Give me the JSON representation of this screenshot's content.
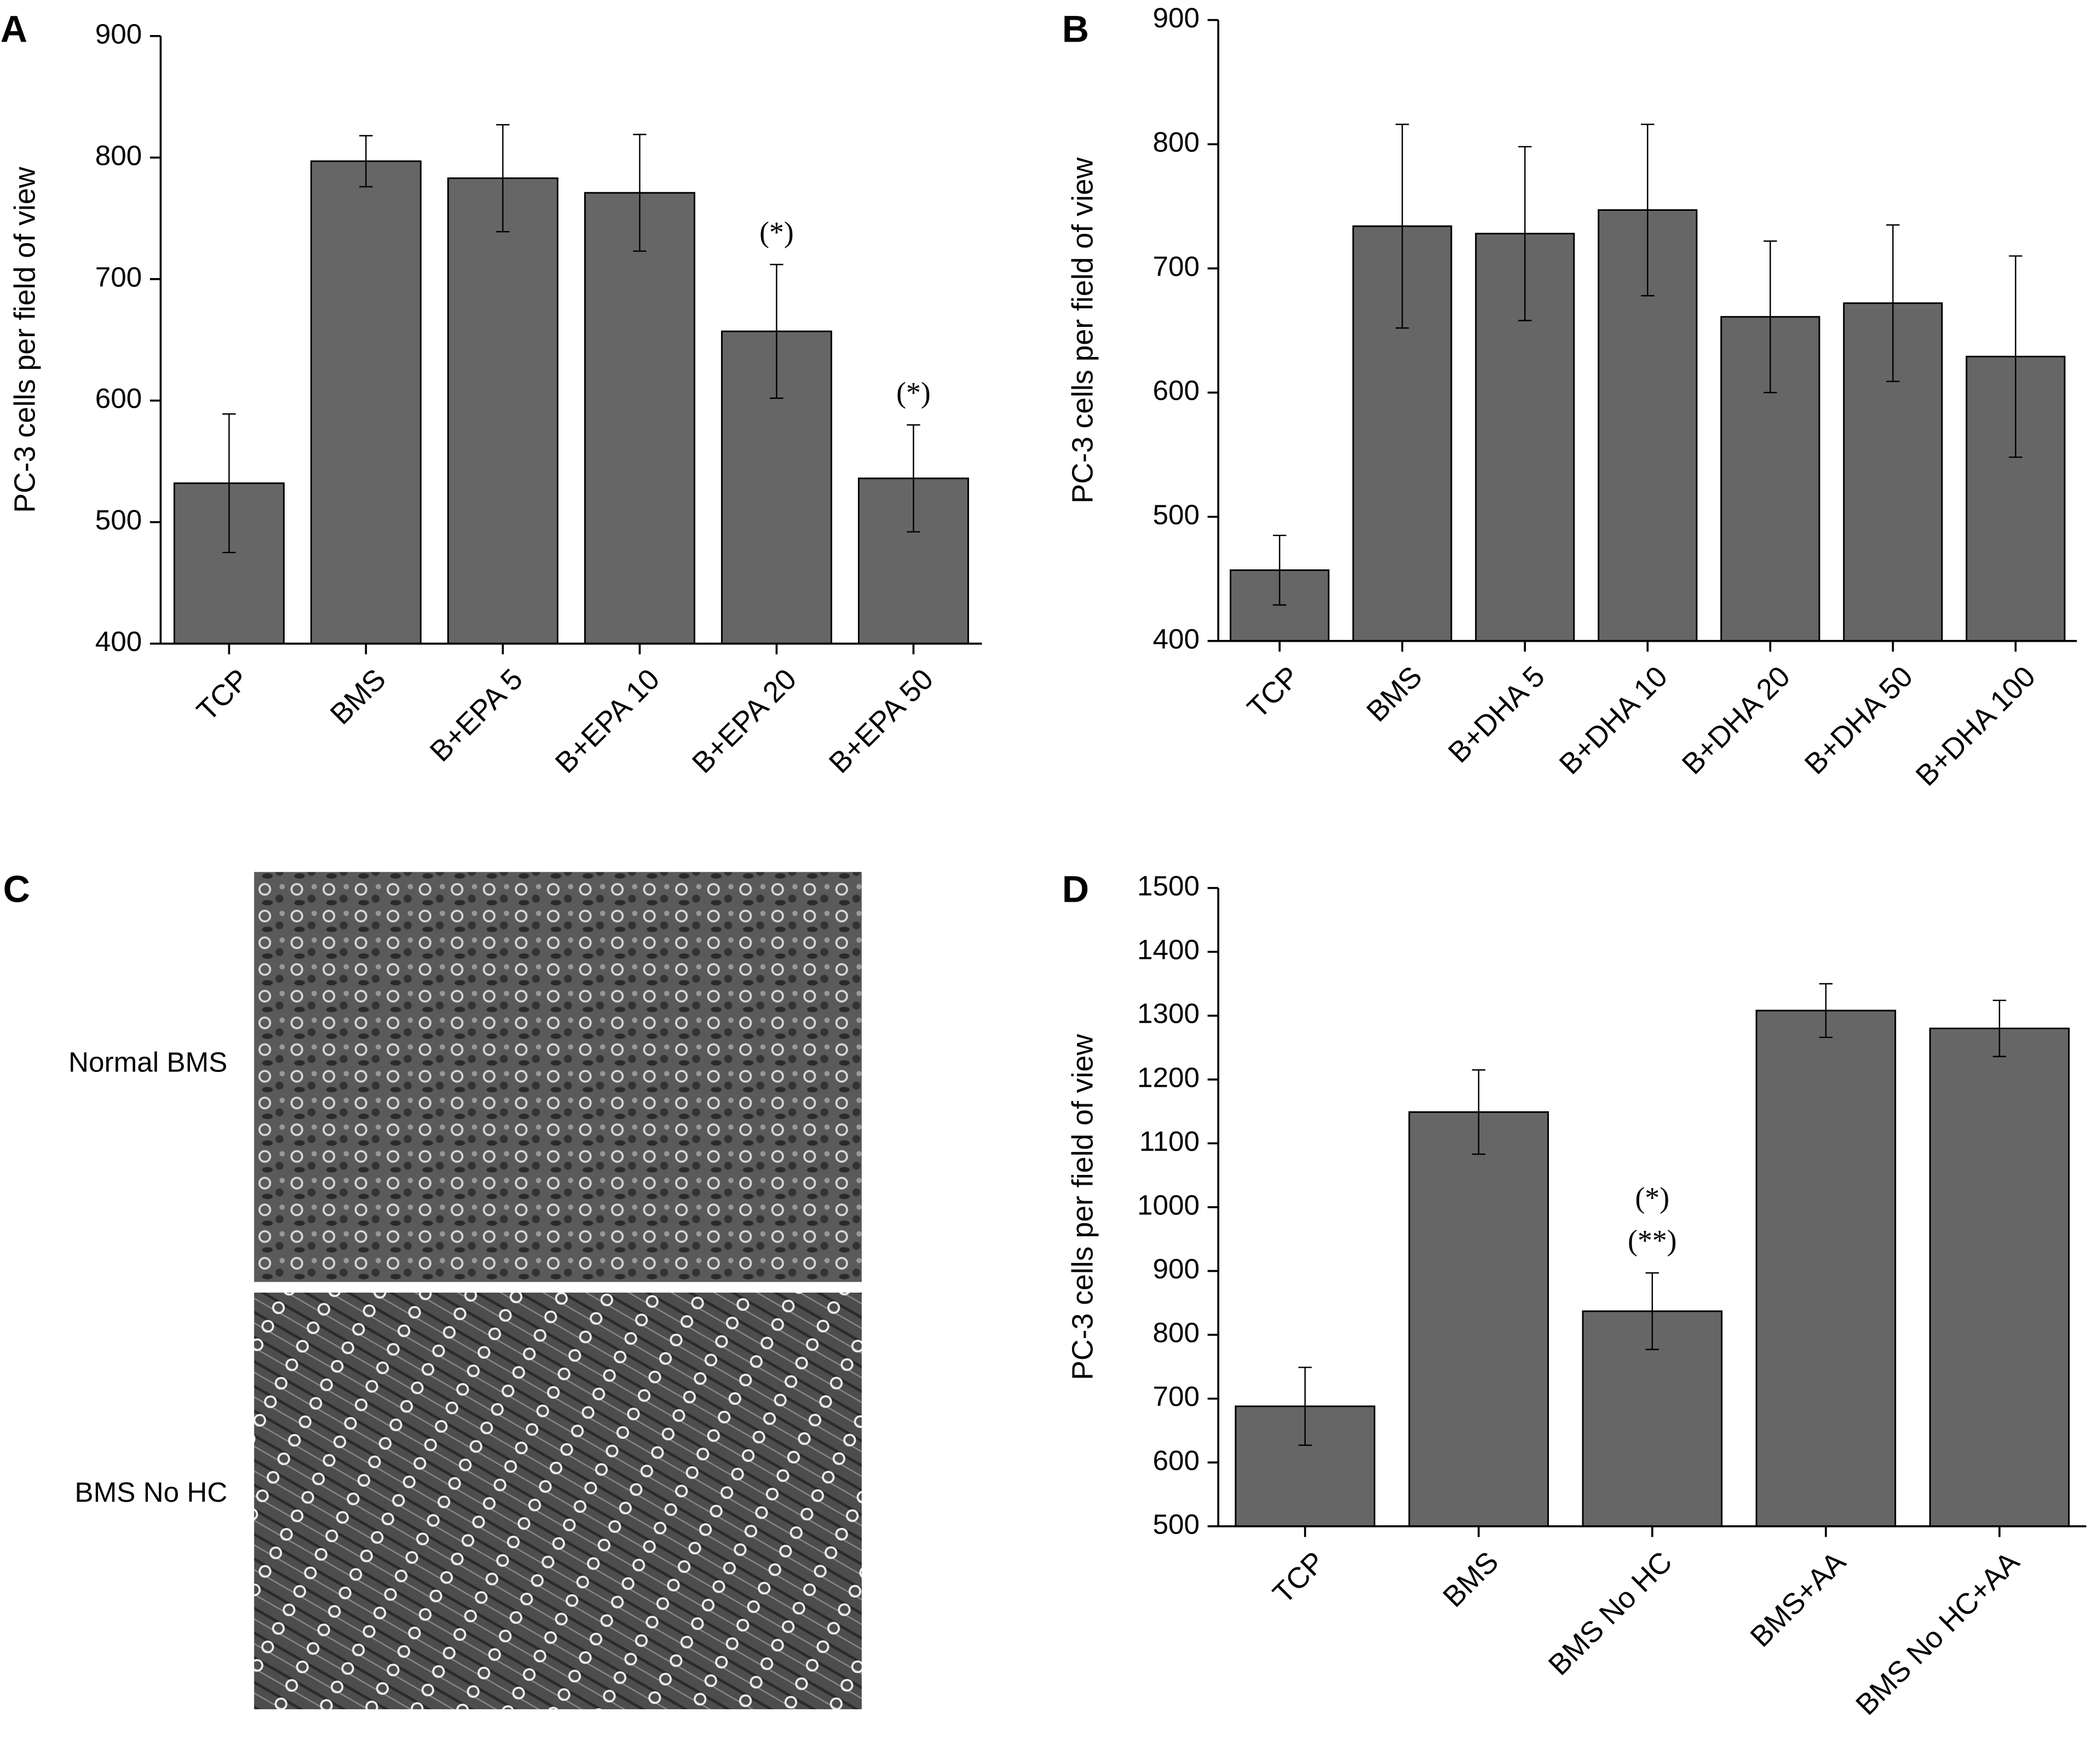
{
  "chart_data": [
    {
      "type": "bar",
      "panel": "A",
      "ylabel": "PC-3 cells per field of view",
      "categories": [
        "TCP",
        "BMS",
        "B+EPA 5",
        "B+EPA 10",
        "B+EPA 20",
        "B+EPA 50"
      ],
      "values": [
        532,
        797,
        783,
        771,
        657,
        536
      ],
      "errors": [
        57,
        21,
        44,
        48,
        55,
        44
      ],
      "color": "#666666",
      "ylim": [
        400,
        900
      ],
      "yticks": [
        400,
        500,
        600,
        700,
        800,
        900
      ],
      "annotations": [
        {
          "category": "B+EPA 20",
          "lines": [
            "(*)"
          ]
        },
        {
          "category": "B+EPA 50",
          "lines": [
            "(*)"
          ]
        }
      ]
    },
    {
      "type": "bar",
      "panel": "B",
      "ylabel": "PC-3 cells per field of view",
      "categories": [
        "TCP",
        "BMS",
        "B+DHA 5",
        "B+DHA 10",
        "B+DHA 20",
        "B+DHA 50",
        "B+DHA 100"
      ],
      "values": [
        457,
        734,
        728,
        747,
        661,
        672,
        629
      ],
      "errors": [
        28,
        82,
        70,
        69,
        61,
        63,
        81
      ],
      "color": "#666666",
      "ylim": [
        400,
        900
      ],
      "yticks": [
        400,
        500,
        600,
        700,
        800,
        900
      ],
      "annotations": []
    },
    {
      "type": "bar",
      "panel": "D",
      "ylabel": "PC-3 cells per field of view",
      "categories": [
        "TCP",
        "BMS",
        "BMS No HC",
        "BMS+AA",
        "BMS No HC+AA"
      ],
      "values": [
        688,
        1149,
        837,
        1308,
        1280
      ],
      "errors": [
        61,
        66,
        60,
        42,
        44
      ],
      "color": "#666666",
      "ylim": [
        500,
        1500
      ],
      "yticks": [
        500,
        600,
        700,
        800,
        900,
        1000,
        1100,
        1200,
        1300,
        1400,
        1500
      ],
      "annotations": [
        {
          "category": "BMS No HC",
          "lines": [
            "(*)",
            "(**)"
          ]
        }
      ]
    }
  ],
  "panel_c": {
    "panel": "C",
    "labels": [
      "Normal BMS",
      "BMS No HC"
    ]
  }
}
